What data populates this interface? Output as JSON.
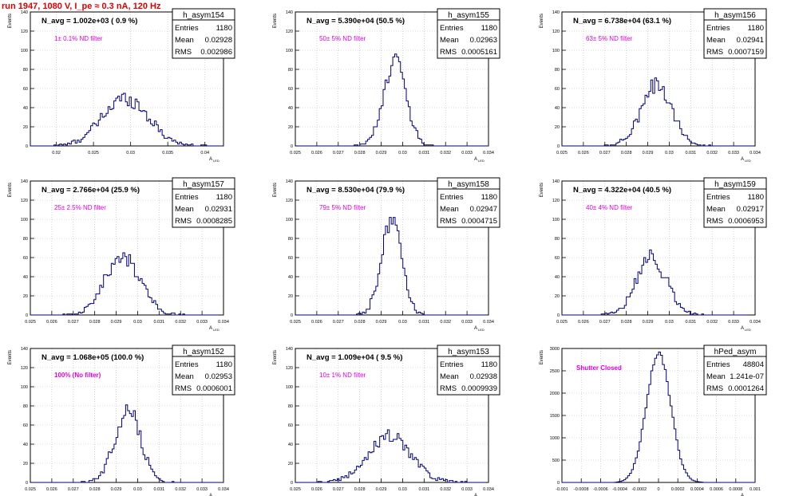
{
  "run_title": "run 1947,  1080 V, I_pe ≈ 0.3 nA, 120 Hz",
  "stats_labels": {
    "entries": "Entries",
    "mean": "Mean",
    "rms": "RMS"
  },
  "y_axis_label": "Events",
  "x_axis_label": "A",
  "x_axis_subscript": "LED",
  "colors": {
    "histogram": "#00007a",
    "filter_text": "#e000e0",
    "run_title": "#e00000",
    "frame": "#000000",
    "grid": "#bbbbbb"
  },
  "chart_data": [
    {
      "type": "histogram",
      "hist_name": "h_asym154",
      "navg_label": "N_avg = 1.002e+03 ( 0.9 %)",
      "filter_label": "1± 0.1% ND filter",
      "entries": "1180",
      "mean": "0.02928",
      "rms": "0.002986",
      "grid": true,
      "xlim": [
        0.0165,
        0.0425
      ],
      "ylim": [
        0,
        140
      ],
      "xticks": [
        0.02,
        0.025,
        0.03,
        0.035,
        0.04
      ],
      "xtick_labels": [
        "0.02",
        "0.025",
        "0.03",
        "0.035",
        "0.04"
      ],
      "yticks": [
        0,
        20,
        40,
        60,
        80,
        100,
        120,
        140
      ],
      "ytick_labels": [
        "0",
        "20",
        "40",
        "60",
        "80",
        "100",
        "120",
        "140"
      ],
      "bins": {
        "center": 0.0293,
        "sigma": 0.0031,
        "nbins": 100,
        "bin_width": 0.00026,
        "peak": 50
      }
    },
    {
      "type": "histogram",
      "hist_name": "h_asym155",
      "navg_label": "N_avg = 5.390e+04 (50.5 %)",
      "filter_label": "50± 5% ND filter",
      "entries": "1180",
      "mean": "0.02963",
      "rms": "0.0005161",
      "grid": true,
      "xlim": [
        0.025,
        0.034
      ],
      "ylim": [
        0,
        140
      ],
      "xticks": [
        0.025,
        0.026,
        0.027,
        0.028,
        0.029,
        0.03,
        0.031,
        0.032,
        0.033,
        0.034
      ],
      "xtick_labels": [
        "0.025",
        "0.026",
        "0.027",
        "0.028",
        "0.029",
        "0.03",
        "0.031",
        "0.032",
        "0.033",
        "0.034"
      ],
      "yticks": [
        0,
        20,
        40,
        60,
        80,
        100,
        120,
        140
      ],
      "ytick_labels": [
        "0",
        "20",
        "40",
        "60",
        "80",
        "100",
        "120",
        "140"
      ],
      "bins": {
        "center": 0.02963,
        "sigma": 0.00052,
        "nbins": 100,
        "bin_width": 9e-05,
        "peak": 90
      }
    },
    {
      "type": "histogram",
      "hist_name": "h_asym156",
      "navg_label": "N_avg = 6.738e+04 (63.1 %)",
      "filter_label": "63± 5% ND filter",
      "entries": "1180",
      "mean": "0.02941",
      "rms": "0.0007159",
      "grid": true,
      "xlim": [
        0.025,
        0.034
      ],
      "ylim": [
        0,
        140
      ],
      "xticks": [
        0.025,
        0.026,
        0.027,
        0.028,
        0.029,
        0.03,
        0.031,
        0.032,
        0.033,
        0.034
      ],
      "xtick_labels": [
        "0.025",
        "0.026",
        "0.027",
        "0.028",
        "0.029",
        "0.03",
        "0.031",
        "0.032",
        "0.033",
        "0.034"
      ],
      "yticks": [
        0,
        20,
        40,
        60,
        80,
        100,
        120,
        140
      ],
      "ytick_labels": [
        "0",
        "20",
        "40",
        "60",
        "80",
        "100",
        "120",
        "140"
      ],
      "bins": {
        "center": 0.02941,
        "sigma": 0.00072,
        "nbins": 100,
        "bin_width": 9e-05,
        "peak": 64
      }
    },
    {
      "type": "histogram",
      "hist_name": "h_asym157",
      "navg_label": "N_avg = 2.766e+04 (25.9 %)",
      "filter_label": "25± 2.5% ND filter",
      "entries": "1180",
      "mean": "0.02931",
      "rms": "0.0008285",
      "grid": true,
      "xlim": [
        0.025,
        0.034
      ],
      "ylim": [
        0,
        140
      ],
      "xticks": [
        0.025,
        0.026,
        0.027,
        0.028,
        0.029,
        0.03,
        0.031,
        0.032,
        0.033,
        0.034
      ],
      "xtick_labels": [
        "0.025",
        "0.026",
        "0.027",
        "0.028",
        "0.029",
        "0.03",
        "0.031",
        "0.032",
        "0.033",
        "0.034"
      ],
      "yticks": [
        0,
        20,
        40,
        60,
        80,
        100,
        120,
        140
      ],
      "ytick_labels": [
        "0",
        "20",
        "40",
        "60",
        "80",
        "100",
        "120",
        "140"
      ],
      "bins": {
        "center": 0.02931,
        "sigma": 0.00083,
        "nbins": 100,
        "bin_width": 9e-05,
        "peak": 60
      }
    },
    {
      "type": "histogram",
      "hist_name": "h_asym158",
      "navg_label": "N_avg = 8.530e+04 (79.9 %)",
      "filter_label": "79± 5% ND filter",
      "entries": "1180",
      "mean": "0.02947",
      "rms": "0.0004715",
      "grid": true,
      "xlim": [
        0.025,
        0.034
      ],
      "ylim": [
        0,
        140
      ],
      "xticks": [
        0.025,
        0.026,
        0.027,
        0.028,
        0.029,
        0.03,
        0.031,
        0.032,
        0.033,
        0.034
      ],
      "xtick_labels": [
        "0.025",
        "0.026",
        "0.027",
        "0.028",
        "0.029",
        "0.03",
        "0.031",
        "0.032",
        "0.033",
        "0.034"
      ],
      "yticks": [
        0,
        20,
        40,
        60,
        80,
        100,
        120,
        140
      ],
      "ytick_labels": [
        "0",
        "20",
        "40",
        "60",
        "80",
        "100",
        "120",
        "140"
      ],
      "bins": {
        "center": 0.02947,
        "sigma": 0.00047,
        "nbins": 100,
        "bin_width": 9e-05,
        "peak": 100
      }
    },
    {
      "type": "histogram",
      "hist_name": "h_asym159",
      "navg_label": "N_avg = 4.322e+04 (40.5 %)",
      "filter_label": "40± 4% ND filter",
      "entries": "1180",
      "mean": "0.02917",
      "rms": "0.0006953",
      "grid": true,
      "xlim": [
        0.025,
        0.034
      ],
      "ylim": [
        0,
        140
      ],
      "xticks": [
        0.025,
        0.026,
        0.027,
        0.028,
        0.029,
        0.03,
        0.031,
        0.032,
        0.033,
        0.034
      ],
      "xtick_labels": [
        "0.025",
        "0.026",
        "0.027",
        "0.028",
        "0.029",
        "0.03",
        "0.031",
        "0.032",
        "0.033",
        "0.034"
      ],
      "yticks": [
        0,
        20,
        40,
        60,
        80,
        100,
        120,
        140
      ],
      "ytick_labels": [
        "0",
        "20",
        "40",
        "60",
        "80",
        "100",
        "120",
        "140"
      ],
      "bins": {
        "center": 0.02917,
        "sigma": 0.0007,
        "nbins": 100,
        "bin_width": 9e-05,
        "peak": 60
      }
    },
    {
      "type": "histogram",
      "hist_name": "h_asym152",
      "navg_label": "N_avg = 1.068e+05 (100.0 %)",
      "filter_label": "100% (No filter)",
      "entries": "1180",
      "mean": "0.02953",
      "rms": "0.0006001",
      "grid": true,
      "xlim": [
        0.025,
        0.034
      ],
      "ylim": [
        0,
        140
      ],
      "xticks": [
        0.025,
        0.026,
        0.027,
        0.028,
        0.029,
        0.03,
        0.031,
        0.032,
        0.033,
        0.034
      ],
      "xtick_labels": [
        "0.025",
        "0.026",
        "0.027",
        "0.028",
        "0.029",
        "0.03",
        "0.031",
        "0.032",
        "0.033",
        "0.034"
      ],
      "yticks": [
        0,
        20,
        40,
        60,
        80,
        100,
        120,
        140
      ],
      "ytick_labels": [
        "0",
        "20",
        "40",
        "60",
        "80",
        "100",
        "120",
        "140"
      ],
      "bins": {
        "center": 0.02953,
        "sigma": 0.0006,
        "nbins": 100,
        "bin_width": 9e-05,
        "peak": 76
      }
    },
    {
      "type": "histogram",
      "hist_name": "h_asym153",
      "navg_label": "N_avg = 1.009e+04 ( 9.5 %)",
      "filter_label": "10± 1% ND filter",
      "entries": "1180",
      "mean": "0.02938",
      "rms": "0.0009939",
      "grid": true,
      "xlim": [
        0.025,
        0.034
      ],
      "ylim": [
        0,
        140
      ],
      "xticks": [
        0.025,
        0.026,
        0.027,
        0.028,
        0.029,
        0.03,
        0.031,
        0.032,
        0.033,
        0.034
      ],
      "xtick_labels": [
        "0.025",
        "0.026",
        "0.027",
        "0.028",
        "0.029",
        "0.03",
        "0.031",
        "0.032",
        "0.033",
        "0.034"
      ],
      "yticks": [
        0,
        20,
        40,
        60,
        80,
        100,
        120,
        140
      ],
      "ytick_labels": [
        "0",
        "20",
        "40",
        "60",
        "80",
        "100",
        "120",
        "140"
      ],
      "bins": {
        "center": 0.02938,
        "sigma": 0.001,
        "nbins": 100,
        "bin_width": 9e-05,
        "peak": 48
      }
    },
    {
      "type": "histogram",
      "hist_name": "hPed_asym",
      "navg_label": "",
      "filter_label": "Shutter Closed",
      "entries": "48804",
      "mean": "1.241e-07",
      "rms": "0.0001264",
      "grid": true,
      "xlim": [
        -0.001,
        0.001
      ],
      "ylim": [
        0,
        3000
      ],
      "xticks": [
        -0.001,
        -0.0008,
        -0.0006,
        -0.0004,
        -0.0002,
        0,
        0.0002,
        0.0004,
        0.0006,
        0.0008,
        0.001
      ],
      "xtick_labels": [
        "-0.001",
        "-0.0008",
        "-0.0006",
        "-0.0004",
        "-0.0002",
        "0",
        "0.0002",
        "0.0004",
        "0.0006",
        "0.0008",
        "0.001"
      ],
      "yticks": [
        0,
        500,
        1000,
        1500,
        2000,
        2500,
        3000
      ],
      "ytick_labels": [
        "0",
        "500",
        "1000",
        "1500",
        "2000",
        "2500",
        "3000"
      ],
      "bins": {
        "center": 1e-07,
        "sigma": 0.000126,
        "nbins": 100,
        "bin_width": 2e-05,
        "peak": 2900
      }
    }
  ]
}
